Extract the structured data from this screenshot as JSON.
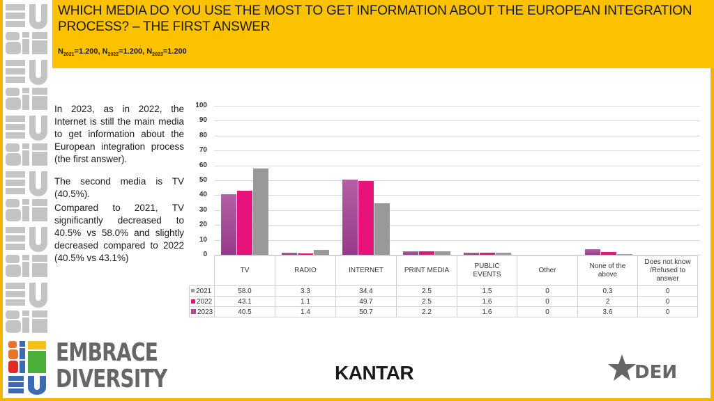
{
  "header": {
    "title": "WHICH MEDIA DO YOU USE THE MOST TO GET INFORMATION ABOUT THE EUROPEAN INTEGRATION PROCESS? – THE FIRST ANSWER",
    "sample_sizes": [
      {
        "label": "N",
        "sub": "2021",
        "value": "=1.200, "
      },
      {
        "label": "N",
        "sub": "2022",
        "value": "=1.200, "
      },
      {
        "label": "N",
        "sub": "2023",
        "value": "=1.200"
      }
    ]
  },
  "commentary": {
    "p1": "In 2023, as in 2022, the Internet is still the main media to get information about the European integration process (the first answer).",
    "p2": "The second media is TV (40.5%).",
    "p3": "Compared to 2021, TV significantly decreased to 40.5% vs 58.0% and slightly decreased compared to 2022 (40.5% vs 43.1%)"
  },
  "colors": {
    "header_bg": "#fcc200",
    "frame": "#f5b400",
    "series_2021": "#999999",
    "series_2022": "#e6137b",
    "series_2023": "#a64a96"
  },
  "chart_data": {
    "type": "bar",
    "title": "WHICH MEDIA DO YOU USE THE MOST TO GET INFORMATION ABOUT THE EUROPEAN INTEGRATION PROCESS? – THE FIRST ANSWER",
    "xlabel": "",
    "ylabel": "",
    "ylim": [
      0,
      100
    ],
    "yticks": [
      0,
      10,
      20,
      30,
      40,
      50,
      60,
      70,
      80,
      90,
      100
    ],
    "grid": true,
    "legend_position": "data-table",
    "categories": [
      "TV",
      "RADIO",
      "INTERNET",
      "PRINT MEDIA",
      "PUBLIC EVENTS",
      "Other",
      "None of the above",
      "Does not know /Refused to answer"
    ],
    "series": [
      {
        "name": "2021",
        "values": [
          58.0,
          3.3,
          34.4,
          2.5,
          1.5,
          0,
          0.3,
          0
        ]
      },
      {
        "name": "2022",
        "values": [
          43.1,
          1.1,
          49.7,
          2.5,
          1.6,
          0,
          2,
          0
        ]
      },
      {
        "name": "2023",
        "values": [
          40.5,
          1.4,
          50.7,
          2.2,
          1.6,
          0,
          3.6,
          0
        ]
      }
    ]
  },
  "table": {
    "headers": [
      "TV",
      "RADIO",
      "INTERNET",
      "PRINT MEDIA",
      "PUBLIC EVENTS",
      "Other",
      "None of the above",
      "Does not know /Refused to answer"
    ],
    "rows": [
      {
        "label": "2021",
        "cells": [
          "58.0",
          "3.3",
          "34.4",
          "2.5",
          "1.5",
          "0",
          "0.3",
          "0"
        ]
      },
      {
        "label": "2022",
        "cells": [
          "43.1",
          "1.1",
          "49.7",
          "2.5",
          "1.6",
          "0",
          "2",
          "0"
        ]
      },
      {
        "label": "2023",
        "cells": [
          "40.5",
          "1.4",
          "50.7",
          "2.2",
          "1.6",
          "0",
          "3.6",
          "0"
        ]
      }
    ]
  },
  "logos": {
    "embrace_line1": "EMBRACE",
    "embrace_line2": "DIVERSITY",
    "kantar": "KANTAR",
    "dem": "DEM"
  }
}
